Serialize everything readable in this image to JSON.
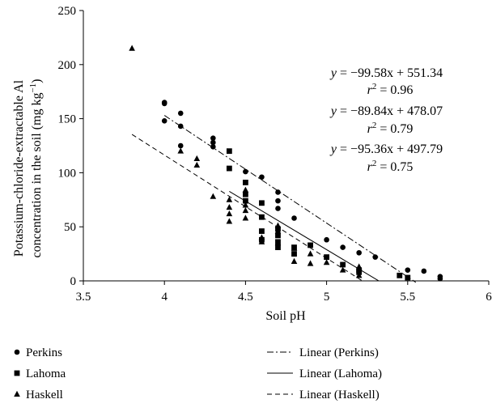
{
  "chart_data": {
    "type": "scatter",
    "xlabel": "Soil pH",
    "ylabel_line1": "Potassium-chloride-extractable Al",
    "ylabel_line2": "concentration in the soil (mg kg",
    "ylabel_sup": "−1",
    "ylabel_close": ")",
    "xlim": [
      3.5,
      6
    ],
    "ylim": [
      0,
      250
    ],
    "xticks": [
      "3.5",
      "4",
      "4.5",
      "5",
      "5.5",
      "6"
    ],
    "yticks": [
      "0",
      "50",
      "100",
      "150",
      "200",
      "250"
    ],
    "grid": false,
    "legend_position": "bottom",
    "series": [
      {
        "name": "Perkins",
        "marker": "circle",
        "points": [
          [
            4.0,
            165
          ],
          [
            4.0,
            164
          ],
          [
            4.0,
            148
          ],
          [
            4.1,
            155
          ],
          [
            4.1,
            143
          ],
          [
            4.1,
            125
          ],
          [
            4.3,
            132
          ],
          [
            4.3,
            128
          ],
          [
            4.3,
            124
          ],
          [
            4.5,
            101
          ],
          [
            4.6,
            96
          ],
          [
            4.7,
            82
          ],
          [
            4.7,
            74
          ],
          [
            4.7,
            67
          ],
          [
            4.8,
            58
          ],
          [
            5.0,
            38
          ],
          [
            5.1,
            31
          ],
          [
            5.2,
            26
          ],
          [
            5.3,
            22
          ],
          [
            5.5,
            10
          ],
          [
            5.6,
            9
          ],
          [
            5.7,
            4
          ],
          [
            5.7,
            2
          ]
        ],
        "trend": {
          "name": "Linear (Perkins)",
          "style": "dash-dot",
          "slope": -99.58,
          "intercept": 551.34,
          "x_range": [
            4.0,
            5.55
          ]
        }
      },
      {
        "name": "Lahoma",
        "marker": "square",
        "points": [
          [
            4.4,
            120
          ],
          [
            4.4,
            104
          ],
          [
            4.5,
            91
          ],
          [
            4.5,
            80
          ],
          [
            4.5,
            74
          ],
          [
            4.6,
            72
          ],
          [
            4.6,
            59
          ],
          [
            4.6,
            46
          ],
          [
            4.6,
            38
          ],
          [
            4.7,
            48
          ],
          [
            4.7,
            42
          ],
          [
            4.7,
            36
          ],
          [
            4.7,
            31
          ],
          [
            4.8,
            31
          ],
          [
            4.8,
            25
          ],
          [
            4.9,
            33
          ],
          [
            5.0,
            22
          ],
          [
            5.1,
            15
          ],
          [
            5.2,
            10
          ],
          [
            5.2,
            8
          ],
          [
            5.45,
            5
          ],
          [
            5.5,
            3
          ]
        ],
        "trend": {
          "name": "Linear (Lahoma)",
          "style": "solid",
          "slope": -89.84,
          "intercept": 478.07,
          "x_range": [
            4.4,
            5.32
          ]
        }
      },
      {
        "name": "Haskell",
        "marker": "triangle",
        "points": [
          [
            3.8,
            215
          ],
          [
            4.1,
            120
          ],
          [
            4.2,
            113
          ],
          [
            4.2,
            107
          ],
          [
            4.3,
            78
          ],
          [
            4.4,
            75
          ],
          [
            4.4,
            68
          ],
          [
            4.4,
            62
          ],
          [
            4.4,
            55
          ],
          [
            4.5,
            84
          ],
          [
            4.5,
            70
          ],
          [
            4.5,
            65
          ],
          [
            4.5,
            58
          ],
          [
            4.6,
            40
          ],
          [
            4.6,
            36
          ],
          [
            4.7,
            51
          ],
          [
            4.7,
            46
          ],
          [
            4.7,
            35
          ],
          [
            4.8,
            30
          ],
          [
            4.8,
            18
          ],
          [
            4.9,
            25
          ],
          [
            4.9,
            16
          ],
          [
            5.0,
            17
          ],
          [
            5.1,
            10
          ],
          [
            5.2,
            13
          ],
          [
            5.2,
            5
          ]
        ],
        "trend": {
          "name": "Linear (Haskell)",
          "style": "dashed",
          "slope": -95.36,
          "intercept": 497.79,
          "x_range": [
            3.8,
            5.22
          ]
        }
      }
    ],
    "annotations": [
      {
        "eq_prefix": "y",
        "eq_rest": " = −99.58x + 551.34",
        "r2_prefix": "r",
        "r2_sup": "2",
        "r2_rest": " = 0.96"
      },
      {
        "eq_prefix": "y",
        "eq_rest": " = −89.84x + 478.07",
        "r2_prefix": "r",
        "r2_sup": "2",
        "r2_rest": " = 0.79"
      },
      {
        "eq_prefix": "y",
        "eq_rest": " = −95.36x + 497.79",
        "r2_prefix": "r",
        "r2_sup": "2",
        "r2_rest": " = 0.75"
      }
    ]
  }
}
